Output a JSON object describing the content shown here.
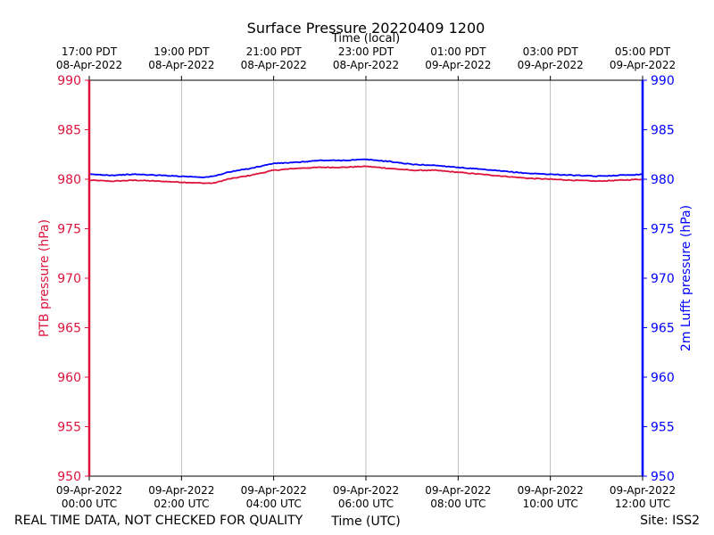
{
  "chart_data": {
    "type": "line",
    "title": "Surface Pressure 20220409 1200",
    "top_xlabel": "Time (local)",
    "xlabel": "Time (UTC)",
    "ylabel_left": "PTB pressure (hPa)",
    "ylabel_right": "2m Lufft pressure (hPa)",
    "xlim_hours_utc": [
      0,
      12
    ],
    "ylim": [
      950,
      990
    ],
    "yticks": [
      "950",
      "955",
      "960",
      "965",
      "970",
      "975",
      "980",
      "985",
      "990"
    ],
    "grid": "vertical",
    "bottom_ticks": [
      {
        "date": "09-Apr-2022",
        "time": "00:00 UTC"
      },
      {
        "date": "09-Apr-2022",
        "time": "02:00 UTC"
      },
      {
        "date": "09-Apr-2022",
        "time": "04:00 UTC"
      },
      {
        "date": "09-Apr-2022",
        "time": "06:00 UTC"
      },
      {
        "date": "09-Apr-2022",
        "time": "08:00 UTC"
      },
      {
        "date": "09-Apr-2022",
        "time": "10:00 UTC"
      },
      {
        "date": "09-Apr-2022",
        "time": "12:00 UTC"
      }
    ],
    "top_ticks": [
      {
        "time": "17:00 PDT",
        "date": "08-Apr-2022"
      },
      {
        "time": "19:00 PDT",
        "date": "08-Apr-2022"
      },
      {
        "time": "21:00 PDT",
        "date": "08-Apr-2022"
      },
      {
        "time": "23:00 PDT",
        "date": "08-Apr-2022"
      },
      {
        "time": "01:00 PDT",
        "date": "09-Apr-2022"
      },
      {
        "time": "03:00 PDT",
        "date": "09-Apr-2022"
      },
      {
        "time": "05:00 PDT",
        "date": "09-Apr-2022"
      }
    ],
    "series": [
      {
        "name": "PTB pressure (hPa)",
        "axis": "left",
        "color": "#dc143c",
        "x_hours_utc": [
          0,
          0.5,
          1,
          1.5,
          2,
          2.5,
          2.7,
          3,
          3.5,
          4,
          4.5,
          5,
          5.5,
          6,
          6.5,
          7,
          7.5,
          8,
          8.5,
          9,
          9.5,
          10,
          10.5,
          11,
          11.5,
          12
        ],
        "values": [
          979.9,
          979.8,
          979.9,
          979.8,
          979.7,
          979.6,
          979.6,
          980.0,
          980.4,
          980.9,
          981.1,
          981.2,
          981.2,
          981.3,
          981.1,
          980.9,
          980.9,
          980.7,
          980.5,
          980.3,
          980.1,
          980.0,
          979.9,
          979.8,
          979.9,
          980.0
        ]
      },
      {
        "name": "2m Lufft pressure (hPa)",
        "axis": "right",
        "color": "#0000ff",
        "x_hours_utc": [
          0,
          0.5,
          1,
          1.5,
          2,
          2.5,
          2.7,
          3,
          3.5,
          4,
          4.5,
          5,
          5.5,
          6,
          6.5,
          7,
          7.5,
          8,
          8.5,
          9,
          9.5,
          10,
          10.5,
          11,
          11.5,
          12
        ],
        "values": [
          980.5,
          980.4,
          980.5,
          980.4,
          980.3,
          980.2,
          980.3,
          980.7,
          981.1,
          981.6,
          981.7,
          981.9,
          981.9,
          982.0,
          981.8,
          981.5,
          981.4,
          981.2,
          981.0,
          980.8,
          980.6,
          980.5,
          980.4,
          980.3,
          980.4,
          980.5
        ]
      }
    ]
  },
  "footer": {
    "left_note": "REAL TIME DATA, NOT CHECKED FOR QUALITY",
    "site": "Site: ISS2"
  }
}
